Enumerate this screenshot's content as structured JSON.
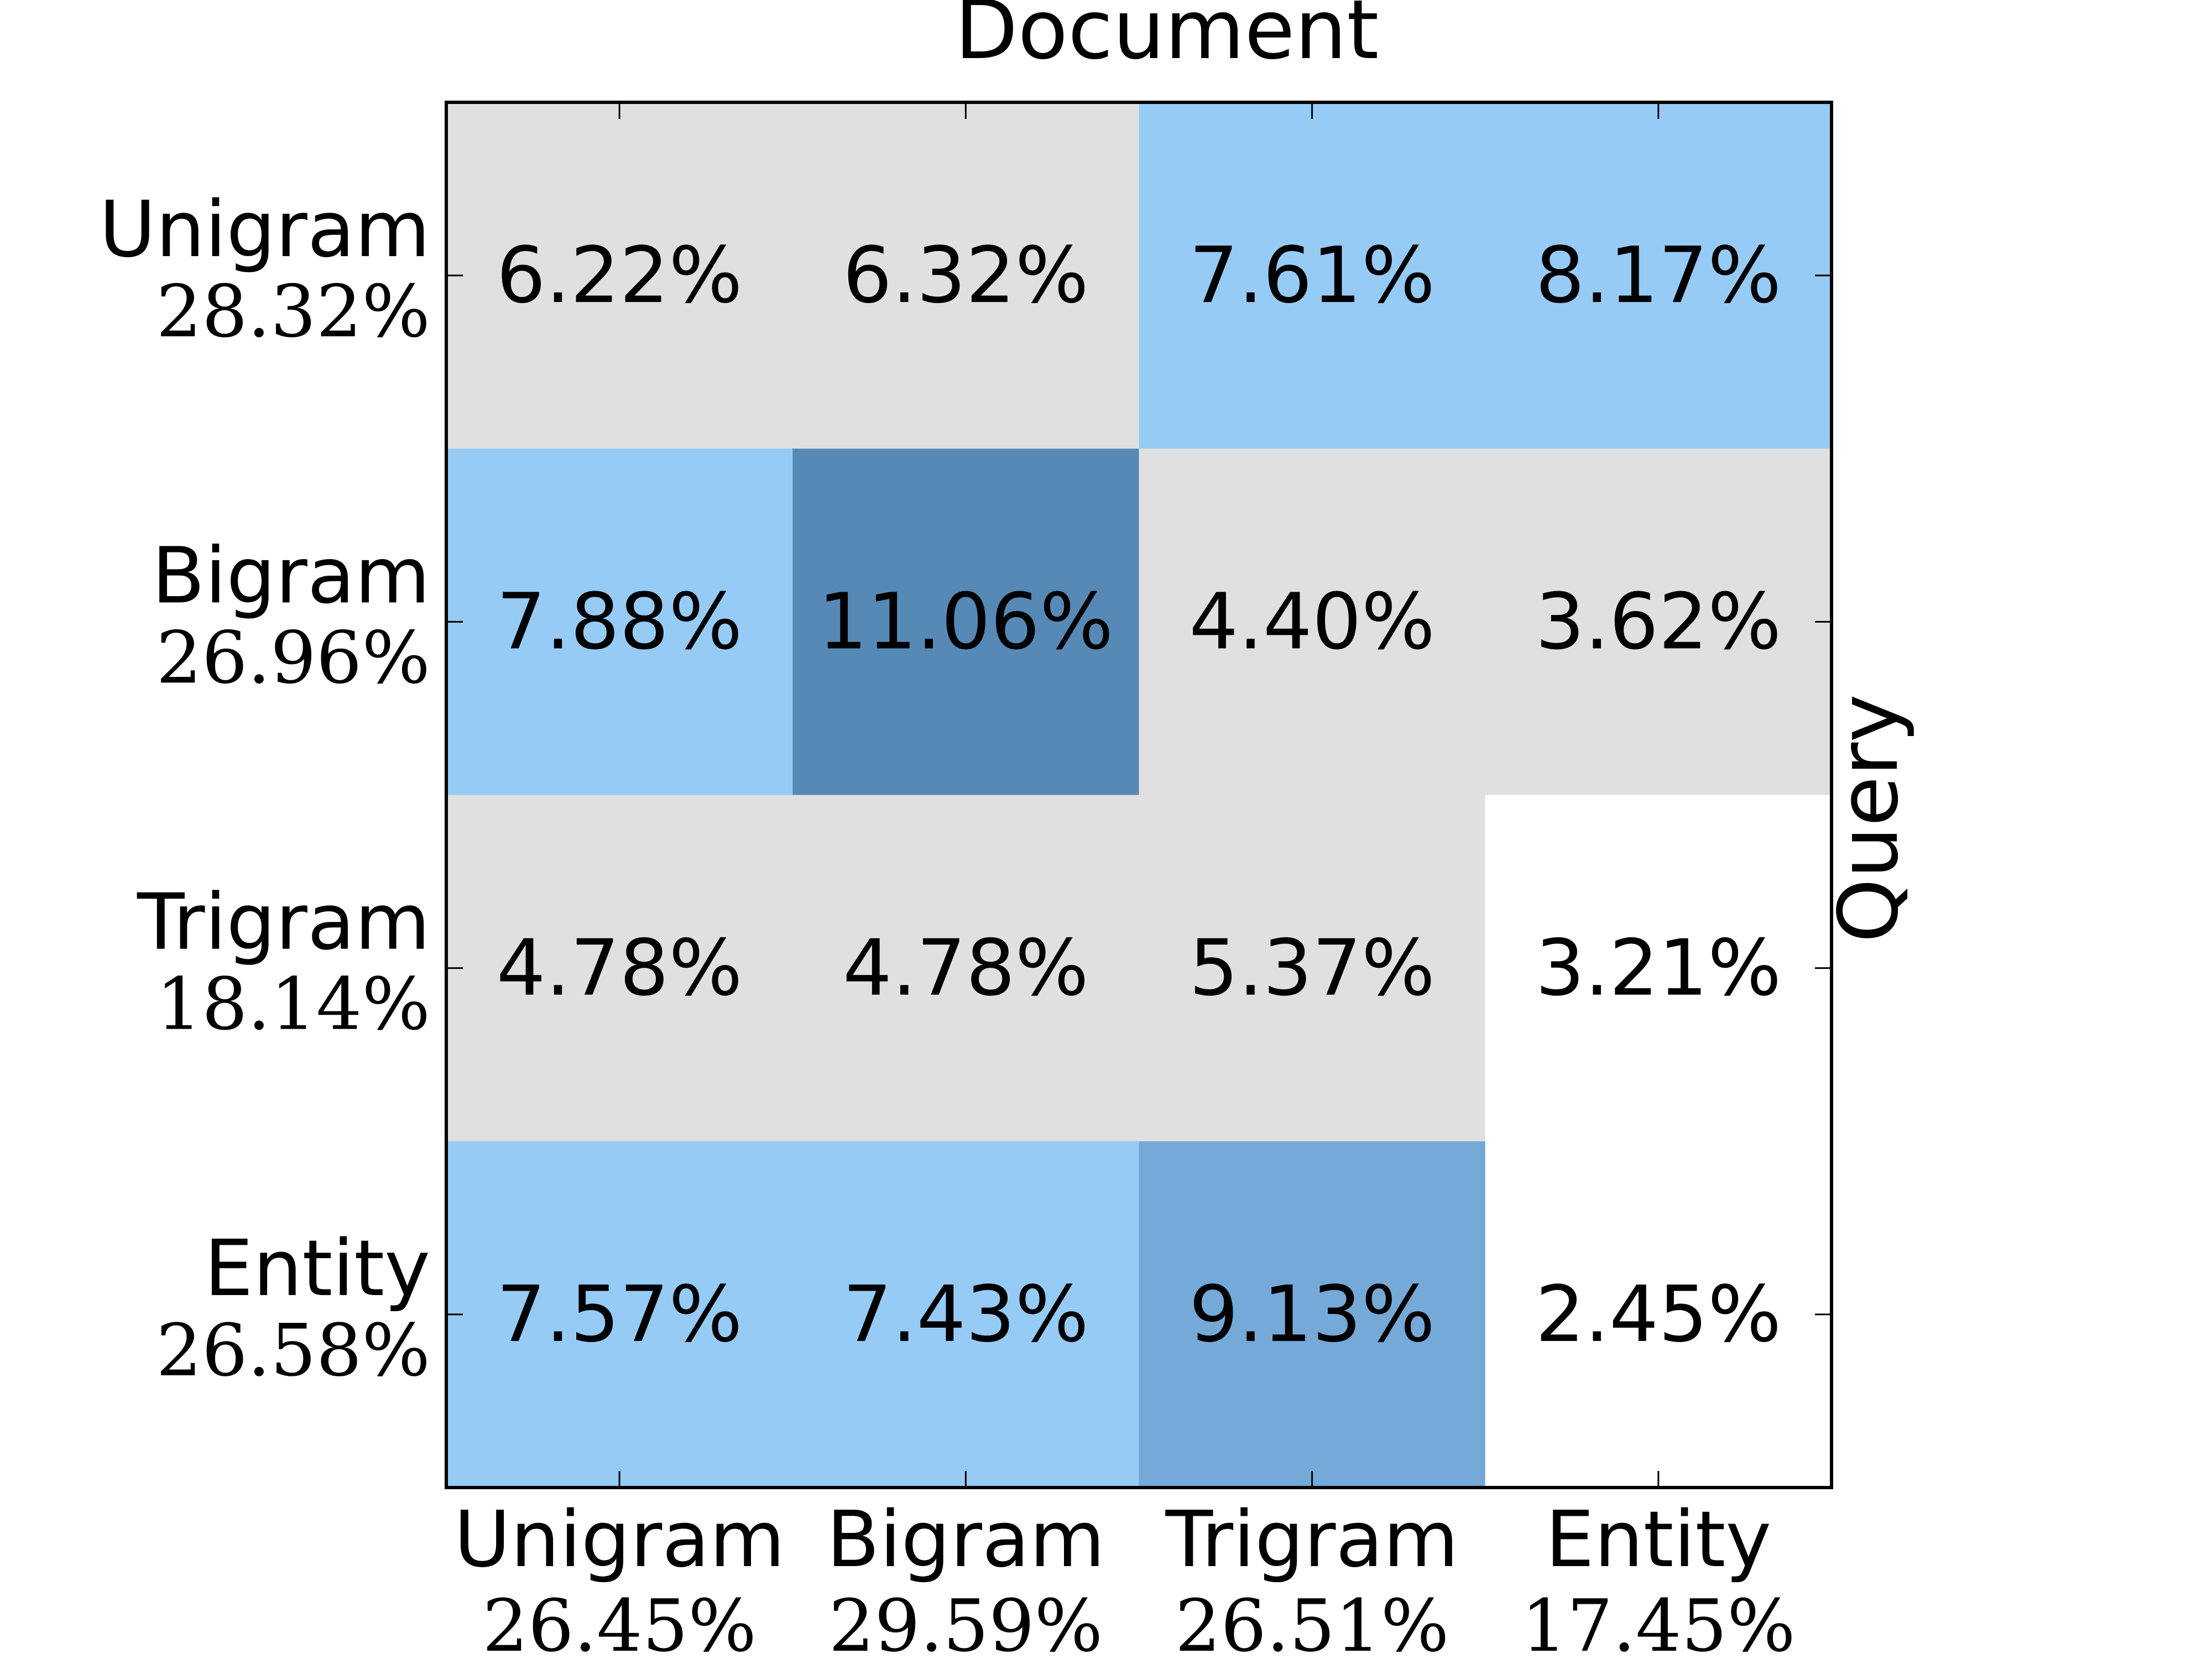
{
  "chart_data": {
    "type": "heatmap",
    "title": "Document",
    "xlabel": "Document",
    "ylabel": "Query",
    "x_categories": [
      "Unigram",
      "Bigram",
      "Trigram",
      "Entity"
    ],
    "x_totals": [
      "26.45%",
      "29.59%",
      "26.51%",
      "17.45%"
    ],
    "y_categories": [
      "Unigram",
      "Bigram",
      "Trigram",
      "Entity"
    ],
    "y_totals": [
      "28.32%",
      "26.96%",
      "18.14%",
      "26.58%"
    ],
    "values": [
      [
        6.22,
        6.32,
        7.61,
        8.17
      ],
      [
        7.88,
        11.06,
        4.4,
        3.62
      ],
      [
        4.78,
        4.78,
        5.37,
        3.21
      ],
      [
        7.57,
        7.43,
        9.13,
        2.45
      ]
    ],
    "value_labels": [
      [
        "6.22%",
        "6.32%",
        "7.61%",
        "8.17%"
      ],
      [
        "7.88%",
        "11.06%",
        "4.40%",
        "3.62%"
      ],
      [
        "4.78%",
        "4.78%",
        "5.37%",
        "3.21%"
      ],
      [
        "7.57%",
        "7.43%",
        "9.13%",
        "2.45%"
      ]
    ],
    "color_scale": [
      {
        "max": 3.5,
        "color": "#ffffff"
      },
      {
        "max": 7.0,
        "color": "#e0e0e0"
      },
      {
        "max": 9.0,
        "color": "#96cbf5"
      },
      {
        "max": 10.0,
        "color": "#75a9d7"
      },
      {
        "max": 100,
        "color": "#5689b6"
      }
    ],
    "grid": false
  }
}
